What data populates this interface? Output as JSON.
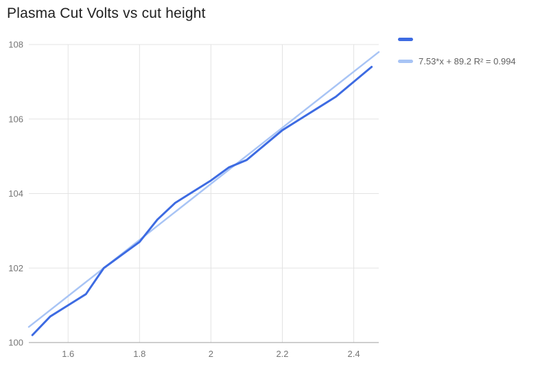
{
  "title": "Plasma Cut Volts vs cut height",
  "legend": {
    "series": {
      "label": "",
      "color": "#3d6be2"
    },
    "trendline": {
      "label": "7.53*x + 89.2 R² = 0.994",
      "color": "#a8c4f5"
    }
  },
  "chart_data": {
    "type": "line",
    "title": "Plasma Cut Volts vs cut height",
    "xlabel": "",
    "ylabel": "",
    "xlim": [
      1.49,
      2.47
    ],
    "ylim": [
      100,
      108
    ],
    "x_ticks": [
      1.6,
      1.8,
      2,
      2.2,
      2.4
    ],
    "x_tick_labels": [
      "1.6",
      "1.8",
      "2",
      "2.2",
      "2.4"
    ],
    "y_ticks": [
      100,
      102,
      104,
      106,
      108
    ],
    "grid": true,
    "legend_position": "right",
    "x": [
      1.5,
      1.55,
      1.6,
      1.65,
      1.7,
      1.75,
      1.8,
      1.85,
      1.9,
      1.95,
      2.0,
      2.05,
      2.1,
      2.15,
      2.2,
      2.25,
      2.3,
      2.35,
      2.4,
      2.45
    ],
    "series": [
      {
        "name": "",
        "color": "#3d6be2",
        "values": [
          100.2,
          100.7,
          101.0,
          101.3,
          102.0,
          102.35,
          102.7,
          103.3,
          103.75,
          104.05,
          104.35,
          104.7,
          104.9,
          105.3,
          105.7,
          106.0,
          106.3,
          106.6,
          107.0,
          107.4
        ]
      }
    ],
    "trendline": {
      "equation": "7.53*x + 89.2",
      "slope": 7.53,
      "intercept": 89.2,
      "r2": 0.994,
      "label": "7.53*x + 89.2 R² = 0.994",
      "color": "#a8c4f5"
    },
    "colors": {
      "grid": "#e3e3e3",
      "axis": "#9e9e9e",
      "tick_label": "#757575"
    }
  }
}
